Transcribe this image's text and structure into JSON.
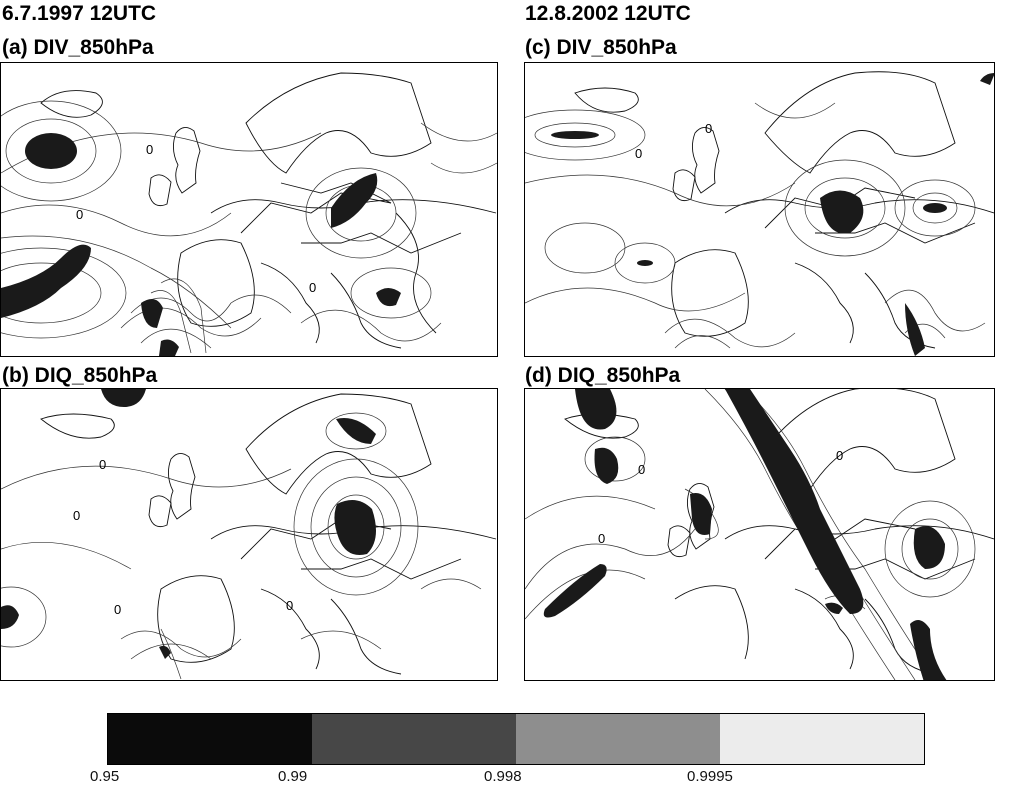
{
  "headings": {
    "left_date": "6.7.1997 12UTC",
    "right_date": "12.8.2002 12UTC"
  },
  "panels": [
    {
      "id": "a",
      "title": "(a) DIV_850hPa",
      "contour_label": "0"
    },
    {
      "id": "b",
      "title": "(b) DIQ_850hPa",
      "contour_label": "0"
    },
    {
      "id": "c",
      "title": "(c) DIV_850hPa",
      "contour_label": "0"
    },
    {
      "id": "d",
      "title": "(d) DIQ_850hPa",
      "contour_label": "0"
    }
  ],
  "colorbar": {
    "colors": [
      "#0b0b0b",
      "#474747",
      "#8e8e8e",
      "#ececec"
    ],
    "ticks": [
      "0.95",
      "0.99",
      "0.998",
      "0.9995"
    ]
  }
}
